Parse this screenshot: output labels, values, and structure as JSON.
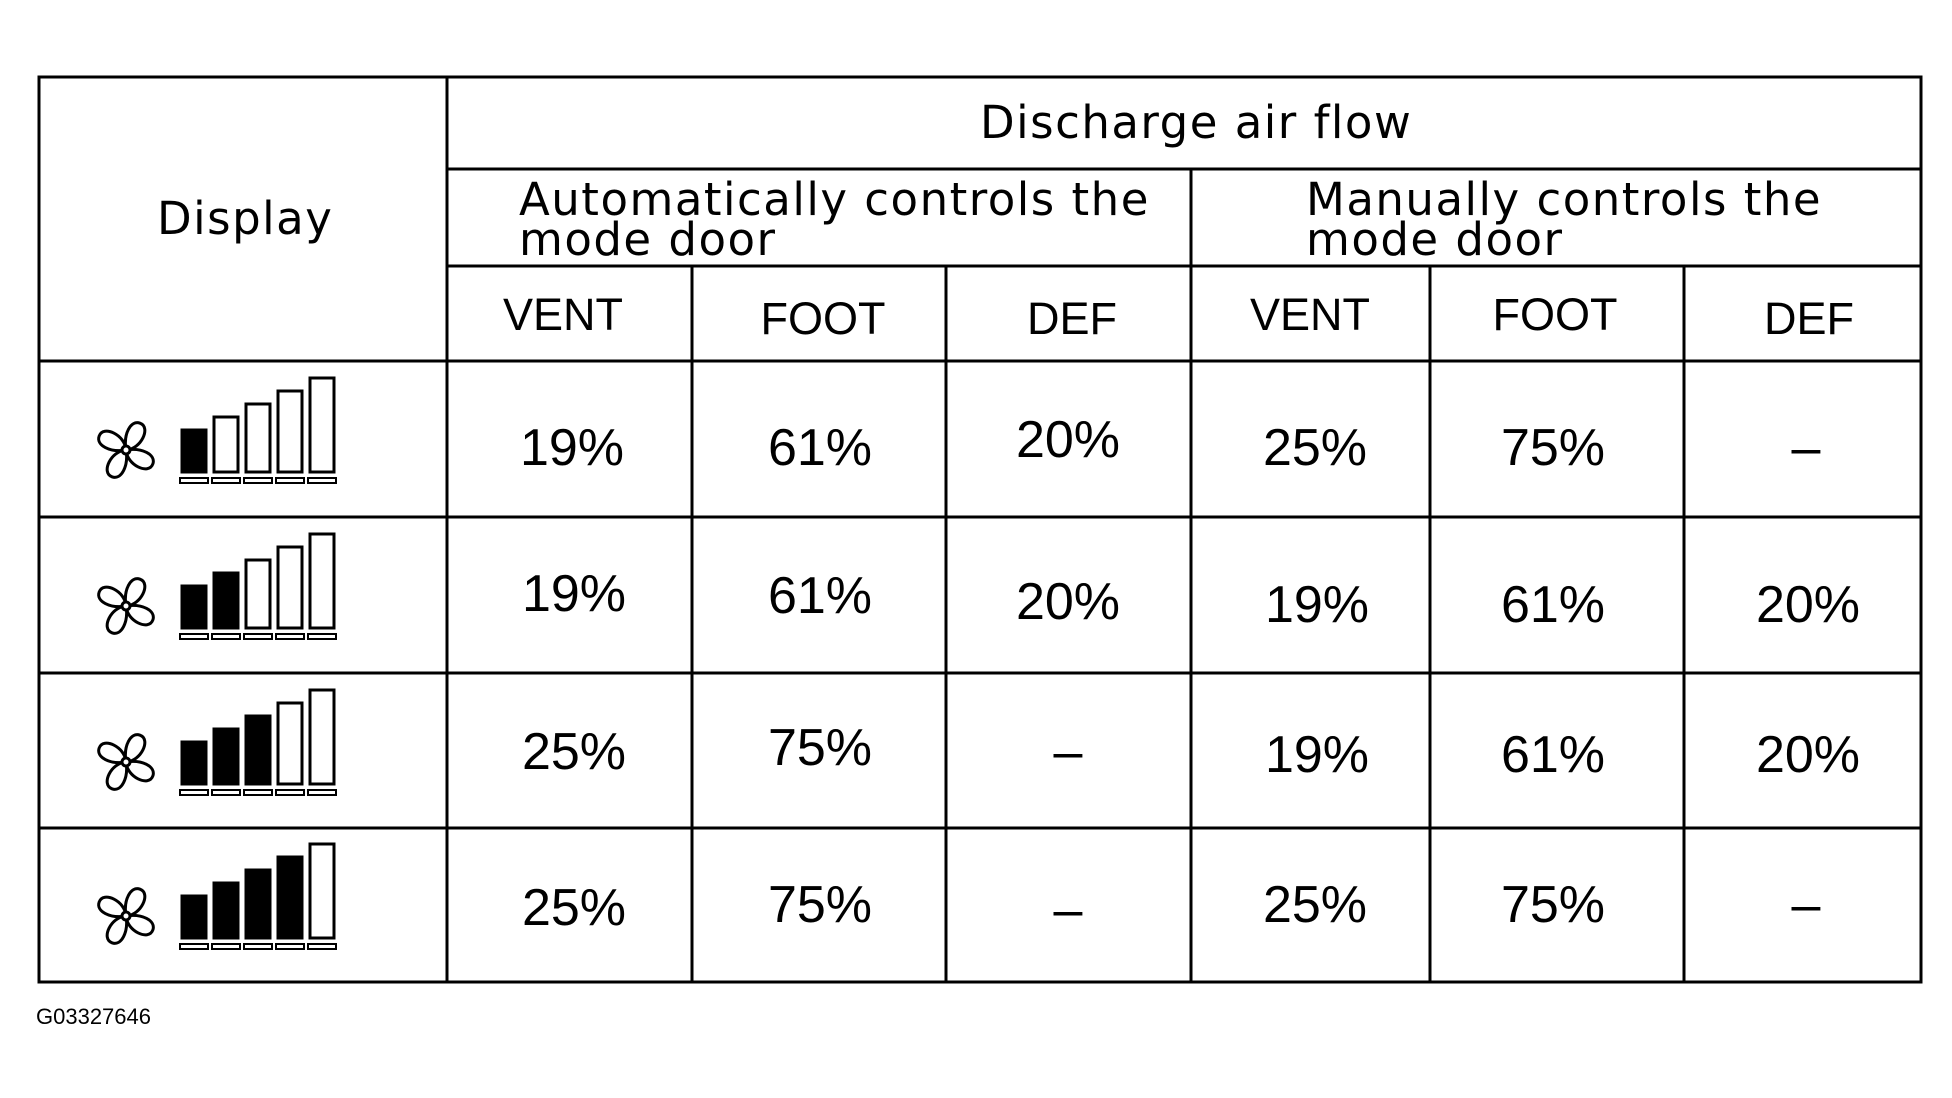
{
  "header": {
    "display_label": "Display",
    "group_title": "Discharge air flow",
    "auto_title_line1": "Automatically controls the",
    "auto_title_line2": "mode door",
    "manual_title_line1": "Manually controls the",
    "manual_title_line2": "mode door",
    "columns": [
      "VENT",
      "FOOT",
      "DEF",
      "VENT",
      "FOOT",
      "DEF"
    ]
  },
  "rows": [
    {
      "fan_level": 1,
      "icon": "fan-speed-1-icon",
      "values": [
        "19%",
        "61%",
        "20%",
        "25%",
        "75%",
        "–"
      ]
    },
    {
      "fan_level": 2,
      "icon": "fan-speed-2-icon",
      "values": [
        "19%",
        "61%",
        "20%",
        "19%",
        "61%",
        "20%"
      ]
    },
    {
      "fan_level": 3,
      "icon": "fan-speed-3-icon",
      "values": [
        "25%",
        "75%",
        "–",
        "19%",
        "61%",
        "20%"
      ]
    },
    {
      "fan_level": 4,
      "icon": "fan-speed-4-icon",
      "values": [
        "25%",
        "75%",
        "–",
        "25%",
        "75%",
        "–"
      ]
    }
  ],
  "figure_id": "G03327646"
}
